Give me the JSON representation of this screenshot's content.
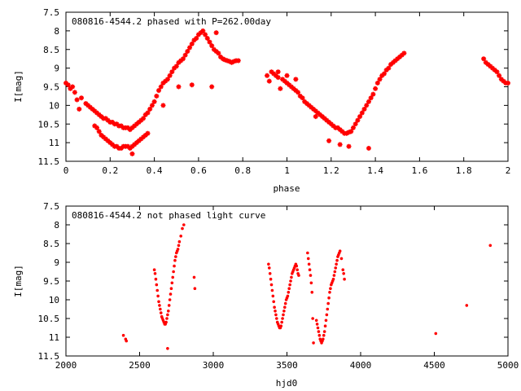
{
  "chart_data": [
    {
      "type": "scatter",
      "title": "080816-4544.2 phased with P=262.00day",
      "xlabel": "phase",
      "ylabel": "I[mag]",
      "xlim": [
        0,
        2
      ],
      "ylim": [
        7.5,
        11.5
      ],
      "y_inverted": true,
      "grid": false,
      "marker": "star",
      "color": "#ff0000",
      "xticks": [
        "0",
        "0.2",
        "0.4",
        "0.6",
        "0.8",
        "1",
        "1.2",
        "1.4",
        "1.6",
        "1.8",
        "2"
      ],
      "yticks": [
        "7.5",
        "8",
        "8.5",
        "9",
        "9.5",
        "10",
        "10.5",
        "11",
        "11.5"
      ],
      "series": [
        {
          "x": [
            0.0,
            0.01,
            0.02,
            0.03,
            0.04,
            0.05,
            0.06,
            0.07,
            0.09,
            0.1,
            0.11,
            0.12,
            0.13,
            0.14,
            0.15,
            0.16,
            0.17,
            0.18,
            0.19,
            0.2,
            0.21,
            0.22,
            0.23,
            0.24,
            0.25,
            0.26,
            0.27,
            0.28,
            0.29,
            0.3,
            0.31,
            0.32,
            0.33,
            0.34,
            0.35,
            0.36,
            0.37,
            0.38,
            0.39,
            0.4,
            0.41,
            0.42,
            0.43,
            0.44,
            0.45,
            0.46,
            0.47,
            0.48,
            0.49,
            0.5,
            0.51,
            0.52,
            0.53,
            0.54,
            0.55,
            0.56,
            0.57,
            0.58,
            0.59,
            0.6,
            0.61,
            0.62,
            0.63,
            0.64,
            0.65,
            0.66,
            0.67,
            0.68,
            0.69,
            0.7,
            0.71,
            0.72,
            0.73,
            0.74,
            0.75,
            0.76,
            0.77,
            0.78,
            0.13,
            0.14,
            0.15,
            0.16,
            0.17,
            0.18,
            0.19,
            0.2,
            0.21,
            0.22,
            0.23,
            0.24,
            0.25,
            0.26,
            0.27,
            0.28,
            0.29,
            0.3,
            0.31,
            0.32,
            0.33,
            0.34,
            0.35,
            0.36,
            0.37,
            0.3,
            0.44,
            0.51,
            0.57,
            0.66,
            0.68
          ],
          "y": [
            9.4,
            9.45,
            9.55,
            9.5,
            9.65,
            9.85,
            10.1,
            9.8,
            9.95,
            10.0,
            10.05,
            10.1,
            10.15,
            10.2,
            10.25,
            10.3,
            10.35,
            10.35,
            10.4,
            10.45,
            10.45,
            10.5,
            10.5,
            10.55,
            10.55,
            10.6,
            10.6,
            10.6,
            10.65,
            10.6,
            10.55,
            10.5,
            10.45,
            10.4,
            10.35,
            10.25,
            10.2,
            10.1,
            10.0,
            9.9,
            9.75,
            9.6,
            9.5,
            9.4,
            9.35,
            9.3,
            9.2,
            9.1,
            9.0,
            8.95,
            8.85,
            8.8,
            8.75,
            8.65,
            8.55,
            8.45,
            8.35,
            8.25,
            8.2,
            8.1,
            8.05,
            8.0,
            8.1,
            8.2,
            8.3,
            8.4,
            8.5,
            8.55,
            8.6,
            8.7,
            8.75,
            8.78,
            8.8,
            8.82,
            8.85,
            8.82,
            8.8,
            8.8,
            10.55,
            10.6,
            10.7,
            10.8,
            10.85,
            10.9,
            10.95,
            11.0,
            11.05,
            11.1,
            11.1,
            11.15,
            11.15,
            11.1,
            11.1,
            11.1,
            11.15,
            11.1,
            11.05,
            11.0,
            10.95,
            10.9,
            10.85,
            10.8,
            10.75,
            11.3,
            10.0,
            9.5,
            9.45,
            9.5,
            8.05
          ],
          "name": ""
        },
        {
          "x": [
            0.91,
            0.92,
            0.93,
            0.94,
            0.95,
            0.96,
            0.97,
            0.98,
            0.99,
            1.0,
            1.01,
            1.02,
            1.03,
            1.04,
            1.05,
            1.06,
            1.07,
            1.08,
            1.09,
            1.1,
            1.11,
            1.12,
            1.13,
            1.14,
            1.15,
            1.16,
            1.17,
            1.18,
            1.19,
            1.2,
            1.21,
            1.22,
            1.23,
            1.24,
            1.25,
            1.26,
            1.27,
            1.28,
            1.29,
            1.3,
            1.31,
            1.32,
            1.33,
            1.34,
            1.35,
            1.36,
            1.37,
            1.38,
            1.39,
            1.4,
            1.41,
            1.42,
            1.43,
            1.44,
            1.45,
            1.46,
            1.47,
            1.48,
            1.49,
            1.5,
            1.51,
            1.52,
            1.53,
            0.96,
            1.0,
            1.04,
            1.13,
            1.19,
            1.24,
            1.28,
            1.37,
            1.89,
            1.9,
            1.91,
            1.92,
            1.93,
            1.94,
            1.95,
            1.96,
            1.97,
            1.98,
            1.99,
            2.0
          ],
          "y": [
            9.2,
            9.35,
            9.1,
            9.15,
            9.2,
            9.25,
            9.55,
            9.3,
            9.35,
            9.4,
            9.45,
            9.5,
            9.55,
            9.6,
            9.65,
            9.75,
            9.8,
            9.9,
            9.95,
            10.0,
            10.05,
            10.1,
            10.15,
            10.2,
            10.25,
            10.3,
            10.35,
            10.4,
            10.45,
            10.5,
            10.55,
            10.6,
            10.6,
            10.65,
            10.7,
            10.75,
            10.75,
            10.72,
            10.7,
            10.6,
            10.5,
            10.4,
            10.3,
            10.2,
            10.1,
            10.0,
            9.9,
            9.8,
            9.7,
            9.55,
            9.4,
            9.3,
            9.2,
            9.15,
            9.05,
            9.0,
            8.9,
            8.85,
            8.8,
            8.75,
            8.7,
            8.65,
            8.6,
            9.1,
            9.2,
            9.3,
            10.3,
            10.95,
            11.05,
            11.1,
            11.15,
            8.75,
            8.85,
            8.9,
            8.95,
            9.0,
            9.05,
            9.1,
            9.2,
            9.3,
            9.35,
            9.4,
            9.4
          ],
          "name": ""
        }
      ]
    },
    {
      "type": "scatter",
      "title": "080816-4544.2 not phased light curve",
      "xlabel": "hjd0",
      "ylabel": "I[mag]",
      "xlim": [
        2000,
        5000
      ],
      "ylim": [
        7.5,
        11.5
      ],
      "y_inverted": true,
      "grid": false,
      "marker": "dot",
      "color": "#ff0000",
      "xticks": [
        "2000",
        "2500",
        "3000",
        "3500",
        "4000",
        "4500",
        "5000"
      ],
      "yticks": [
        "7.5",
        "8",
        "8.5",
        "9",
        "9.5",
        "10",
        "10.5",
        "11",
        "11.5"
      ],
      "series": [
        {
          "x": [
            2390,
            2405,
            2410,
            2600,
            2605,
            2610,
            2615,
            2620,
            2625,
            2630,
            2635,
            2640,
            2645,
            2650,
            2655,
            2660,
            2665,
            2670,
            2675,
            2680,
            2685,
            2690,
            2695,
            2700,
            2705,
            2710,
            2715,
            2720,
            2725,
            2730,
            2735,
            2740,
            2745,
            2750,
            2755,
            2760,
            2765,
            2770,
            2780,
            2790,
            2800,
            2690,
            2870,
            2875
          ],
          "y": [
            10.95,
            11.05,
            11.1,
            9.2,
            9.3,
            9.45,
            9.6,
            9.75,
            9.9,
            10.05,
            10.15,
            10.25,
            10.35,
            10.45,
            10.5,
            10.55,
            10.6,
            10.65,
            10.65,
            10.6,
            10.5,
            10.4,
            10.3,
            10.15,
            10.0,
            9.85,
            9.7,
            9.55,
            9.4,
            9.25,
            9.1,
            8.95,
            8.85,
            8.75,
            8.7,
            8.65,
            8.55,
            8.45,
            8.3,
            8.1,
            8.0,
            11.3,
            9.4,
            9.7
          ],
          "name": ""
        },
        {
          "x": [
            3375,
            3380,
            3385,
            3390,
            3395,
            3400,
            3405,
            3410,
            3415,
            3420,
            3425,
            3430,
            3435,
            3440,
            3445,
            3450,
            3455,
            3460,
            3465,
            3470,
            3475,
            3480,
            3485,
            3490,
            3495,
            3500,
            3505,
            3510,
            3515,
            3520,
            3525,
            3530,
            3535,
            3540,
            3545,
            3550,
            3555,
            3560,
            3565,
            3570,
            3575,
            3580
          ],
          "y": [
            9.05,
            9.15,
            9.3,
            9.45,
            9.6,
            9.75,
            9.9,
            10.05,
            10.2,
            10.3,
            10.4,
            10.5,
            10.6,
            10.65,
            10.7,
            10.75,
            10.75,
            10.7,
            10.6,
            10.5,
            10.4,
            10.3,
            10.2,
            10.1,
            10.0,
            9.95,
            9.9,
            9.8,
            9.7,
            9.6,
            9.5,
            9.4,
            9.3,
            9.25,
            9.2,
            9.15,
            9.1,
            9.05,
            9.1,
            9.2,
            9.3,
            9.35
          ],
          "name": ""
        },
        {
          "x": [
            3640,
            3645,
            3650,
            3655,
            3660,
            3665,
            3670,
            3675,
            3680,
            3700,
            3705,
            3710,
            3715,
            3720,
            3725,
            3730,
            3735,
            3740,
            3745,
            3750,
            3755,
            3760,
            3765,
            3770,
            3775,
            3780,
            3785,
            3790,
            3795,
            3800,
            3805,
            3810,
            3815,
            3820,
            3825,
            3830,
            3835,
            3840,
            3845,
            3850,
            3855,
            3860,
            3870,
            3880,
            3885,
            3890
          ],
          "y": [
            8.75,
            8.9,
            9.05,
            9.2,
            9.35,
            9.55,
            9.8,
            10.5,
            11.15,
            10.55,
            10.65,
            10.75,
            10.85,
            10.95,
            11.05,
            11.1,
            11.15,
            11.1,
            11.05,
            10.95,
            10.85,
            10.7,
            10.55,
            10.4,
            10.25,
            10.1,
            9.95,
            9.8,
            9.7,
            9.6,
            9.55,
            9.5,
            9.45,
            9.35,
            9.25,
            9.15,
            9.05,
            8.95,
            8.85,
            8.8,
            8.75,
            8.7,
            8.9,
            9.2,
            9.3,
            9.45
          ],
          "name": ""
        },
        {
          "x": [
            4510,
            4720,
            4880
          ],
          "y": [
            10.9,
            10.15,
            8.55
          ],
          "name": ""
        }
      ]
    }
  ]
}
